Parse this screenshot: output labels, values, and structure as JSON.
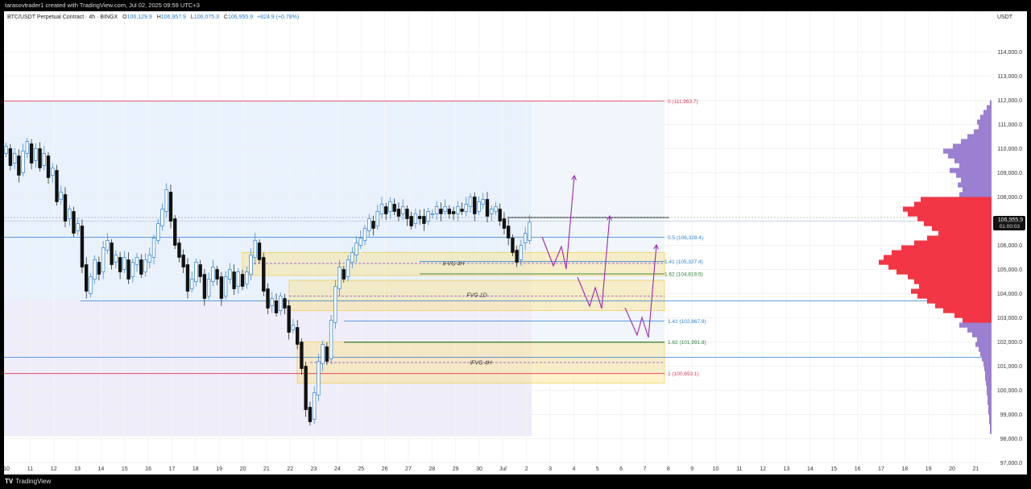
{
  "header": {
    "credit": "tarasovtrader1 created with TradingView.com, Jul 02, 2025 09:59 UTC+3"
  },
  "legend": {
    "symbol": "BTC/USDT Perpetual Contract · 4h · BINGX",
    "o_label": "O",
    "o": "106,129.9",
    "h_label": "H",
    "h": "106,957.9",
    "l_label": "L",
    "l": "106,075.3",
    "c_label": "C",
    "c": "106,955.9",
    "change": "+824.9 (+0.78%)"
  },
  "axis": {
    "currency": "USDT",
    "price_ticks": [
      "114,000.0",
      "113,000.0",
      "112,000.0",
      "111,000.0",
      "110,000.0",
      "109,000.0",
      "108,000.0",
      "107,000.0",
      "106,000.0",
      "105,000.0",
      "104,000.0",
      "103,000.0",
      "102,000.0",
      "101,000.0",
      "100,000.0",
      "99,000.0",
      "98,000.0",
      "97,000.0"
    ],
    "date_ticks": [
      "10",
      "11",
      "12",
      "13",
      "14",
      "15",
      "16",
      "17",
      "18",
      "19",
      "20",
      "21",
      "22",
      "23",
      "24",
      "25",
      "26",
      "27",
      "28",
      "29",
      "30",
      "Jul",
      "2",
      "3",
      "4",
      "5",
      "6",
      "7",
      "8",
      "9",
      "10",
      "11",
      "12",
      "13",
      "14",
      "15",
      "16",
      "17",
      "18",
      "19",
      "20",
      "21"
    ],
    "current_price": "106,955.9",
    "countdown": "01:00:03"
  },
  "levels": {
    "fib_0": "0 (111,963.7)",
    "fib_05": "0.5 (106,328.4)",
    "fib_141_a": "1.41 (105,327.4)",
    "fib_162_a": "1.62 (104,819.5)",
    "fib_141_b": "1.41 (102,867.9)",
    "fib_162_b": "1.62 (101,991.8)",
    "fib_1": "1 (100,693.1)"
  },
  "zones": {
    "ifvg_upper": "iFVG 4H",
    "fvg": "FVG 1D",
    "ifvg_lower": "iFVG 4H"
  },
  "colors": {
    "bull": "#2a7fd4",
    "bear": "#111111",
    "fib_red": "#e03455",
    "fib_blue": "#2a7fd4",
    "fib_green": "#2f7a3a",
    "profile_hvn": "#f23645",
    "profile": "#9b7fd1",
    "arrow": "#9c27b0"
  },
  "footer": {
    "brand": "TradingView"
  },
  "chart_data": {
    "type": "candlestick",
    "timeframe": "4h",
    "ylim": [
      96500,
      114700
    ],
    "x_axis": "Jun 10 – Jul 21, 2025",
    "candles_visible": true
  }
}
